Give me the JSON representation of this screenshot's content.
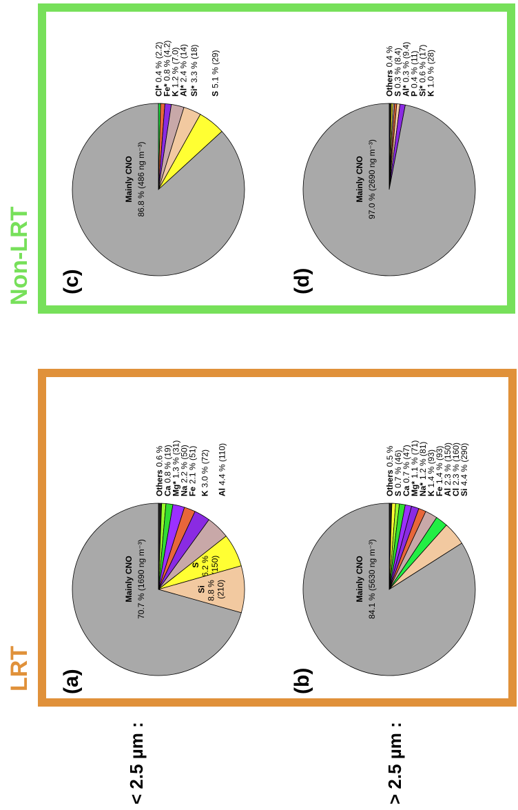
{
  "columns": [
    "LRT",
    "Non-LRT"
  ],
  "rows": [
    "< 2.5 µm :",
    "> 2.5 µm :"
  ],
  "chart_data": [
    {
      "type": "pie",
      "title": "(a)",
      "categories": [
        "Others",
        "Ca",
        "Mg*",
        "Na",
        "Fe",
        "K",
        "Al",
        "S",
        "Si",
        "Mainly CNO"
      ],
      "values": [
        0.6,
        0.8,
        1.3,
        2.2,
        2.1,
        3.0,
        4.4,
        6.2,
        8.8,
        70.7
      ],
      "value_labels": [
        "0.6 %",
        "0.8 % (19)",
        "1.3 % (31)",
        "2.2 % (50)",
        "2.1 % (51)",
        "3.0 % (72)",
        "4.4 % (110)",
        "6.2 % (150)",
        "8.8 % (210)",
        "70.7 % (1690 ng m⁻³)"
      ],
      "colors": [
        "#222222",
        "#9aff2a",
        "#33dd33",
        "#9b30ff",
        "#e8663a",
        "#8a2be2",
        "#c8a8a8",
        "#ffff33",
        "#f2c9a0",
        "#a9a9a9"
      ]
    },
    {
      "type": "pie",
      "title": "(b)",
      "categories": [
        "Others",
        "S",
        "Ca",
        "Mg*",
        "Na*",
        "K",
        "Fe",
        "Al",
        "Cl",
        "Si",
        "Mainly CNO"
      ],
      "values": [
        0.5,
        0.7,
        0.7,
        1.1,
        1.2,
        1.4,
        1.4,
        2.3,
        2.3,
        4.4,
        84.1
      ],
      "value_labels": [
        "0.5 %",
        "0.7 % (46)",
        "0.7 % (47)",
        "1.1 % (71)",
        "1.2 % (81)",
        "1.4 % (93)",
        "1.4 % (93)",
        "2.3 % (150)",
        "2.3 % (160)",
        "4.4 % (290)",
        "84.1 % (5630 ng m⁻³)"
      ],
      "colors": [
        "#222222",
        "#ffff33",
        "#9aff2a",
        "#33dd33",
        "#9b30ff",
        "#8a2be2",
        "#e8663a",
        "#c8a8a8",
        "#22ee44",
        "#f2c9a0",
        "#a9a9a9"
      ]
    },
    {
      "type": "pie",
      "title": "(c)",
      "categories": [
        "Cl*",
        "Fe*",
        "K",
        "Al*",
        "Si*",
        "S",
        "Mainly CNO"
      ],
      "values": [
        0.4,
        0.8,
        1.2,
        2.4,
        3.3,
        5.1,
        86.8
      ],
      "value_labels": [
        "0.4 % (2.2)",
        "0.8 % (4.2)",
        "1.2 % (7.0)",
        "2.4 % (14)",
        "3.3 % (18)",
        "5.1 % (29)",
        "86.8 % (486 ng m⁻³)"
      ],
      "colors": [
        "#22ee44",
        "#e8663a",
        "#8a2be2",
        "#c8a8a8",
        "#f2c9a0",
        "#ffff33",
        "#a9a9a9"
      ]
    },
    {
      "type": "pie",
      "title": "(d)",
      "categories": [
        "Others",
        "S",
        "Al*",
        "P",
        "Si*",
        "K",
        "Mainly CNO"
      ],
      "values": [
        0.4,
        0.3,
        0.3,
        0.4,
        0.6,
        1.0,
        97.0
      ],
      "value_labels": [
        "0.4 %",
        "0.3 % (8.4)",
        "0.3 % (9.4)",
        "0.4 % (11)",
        "0.6 % (17)",
        "1.0 % (28)",
        "97.0 % (2690 ng m⁻³)"
      ],
      "colors": [
        "#222222",
        "#ffff33",
        "#c8a8a8",
        "#e8663a",
        "#f2c9a0",
        "#8a2be2",
        "#a9a9a9"
      ]
    }
  ]
}
